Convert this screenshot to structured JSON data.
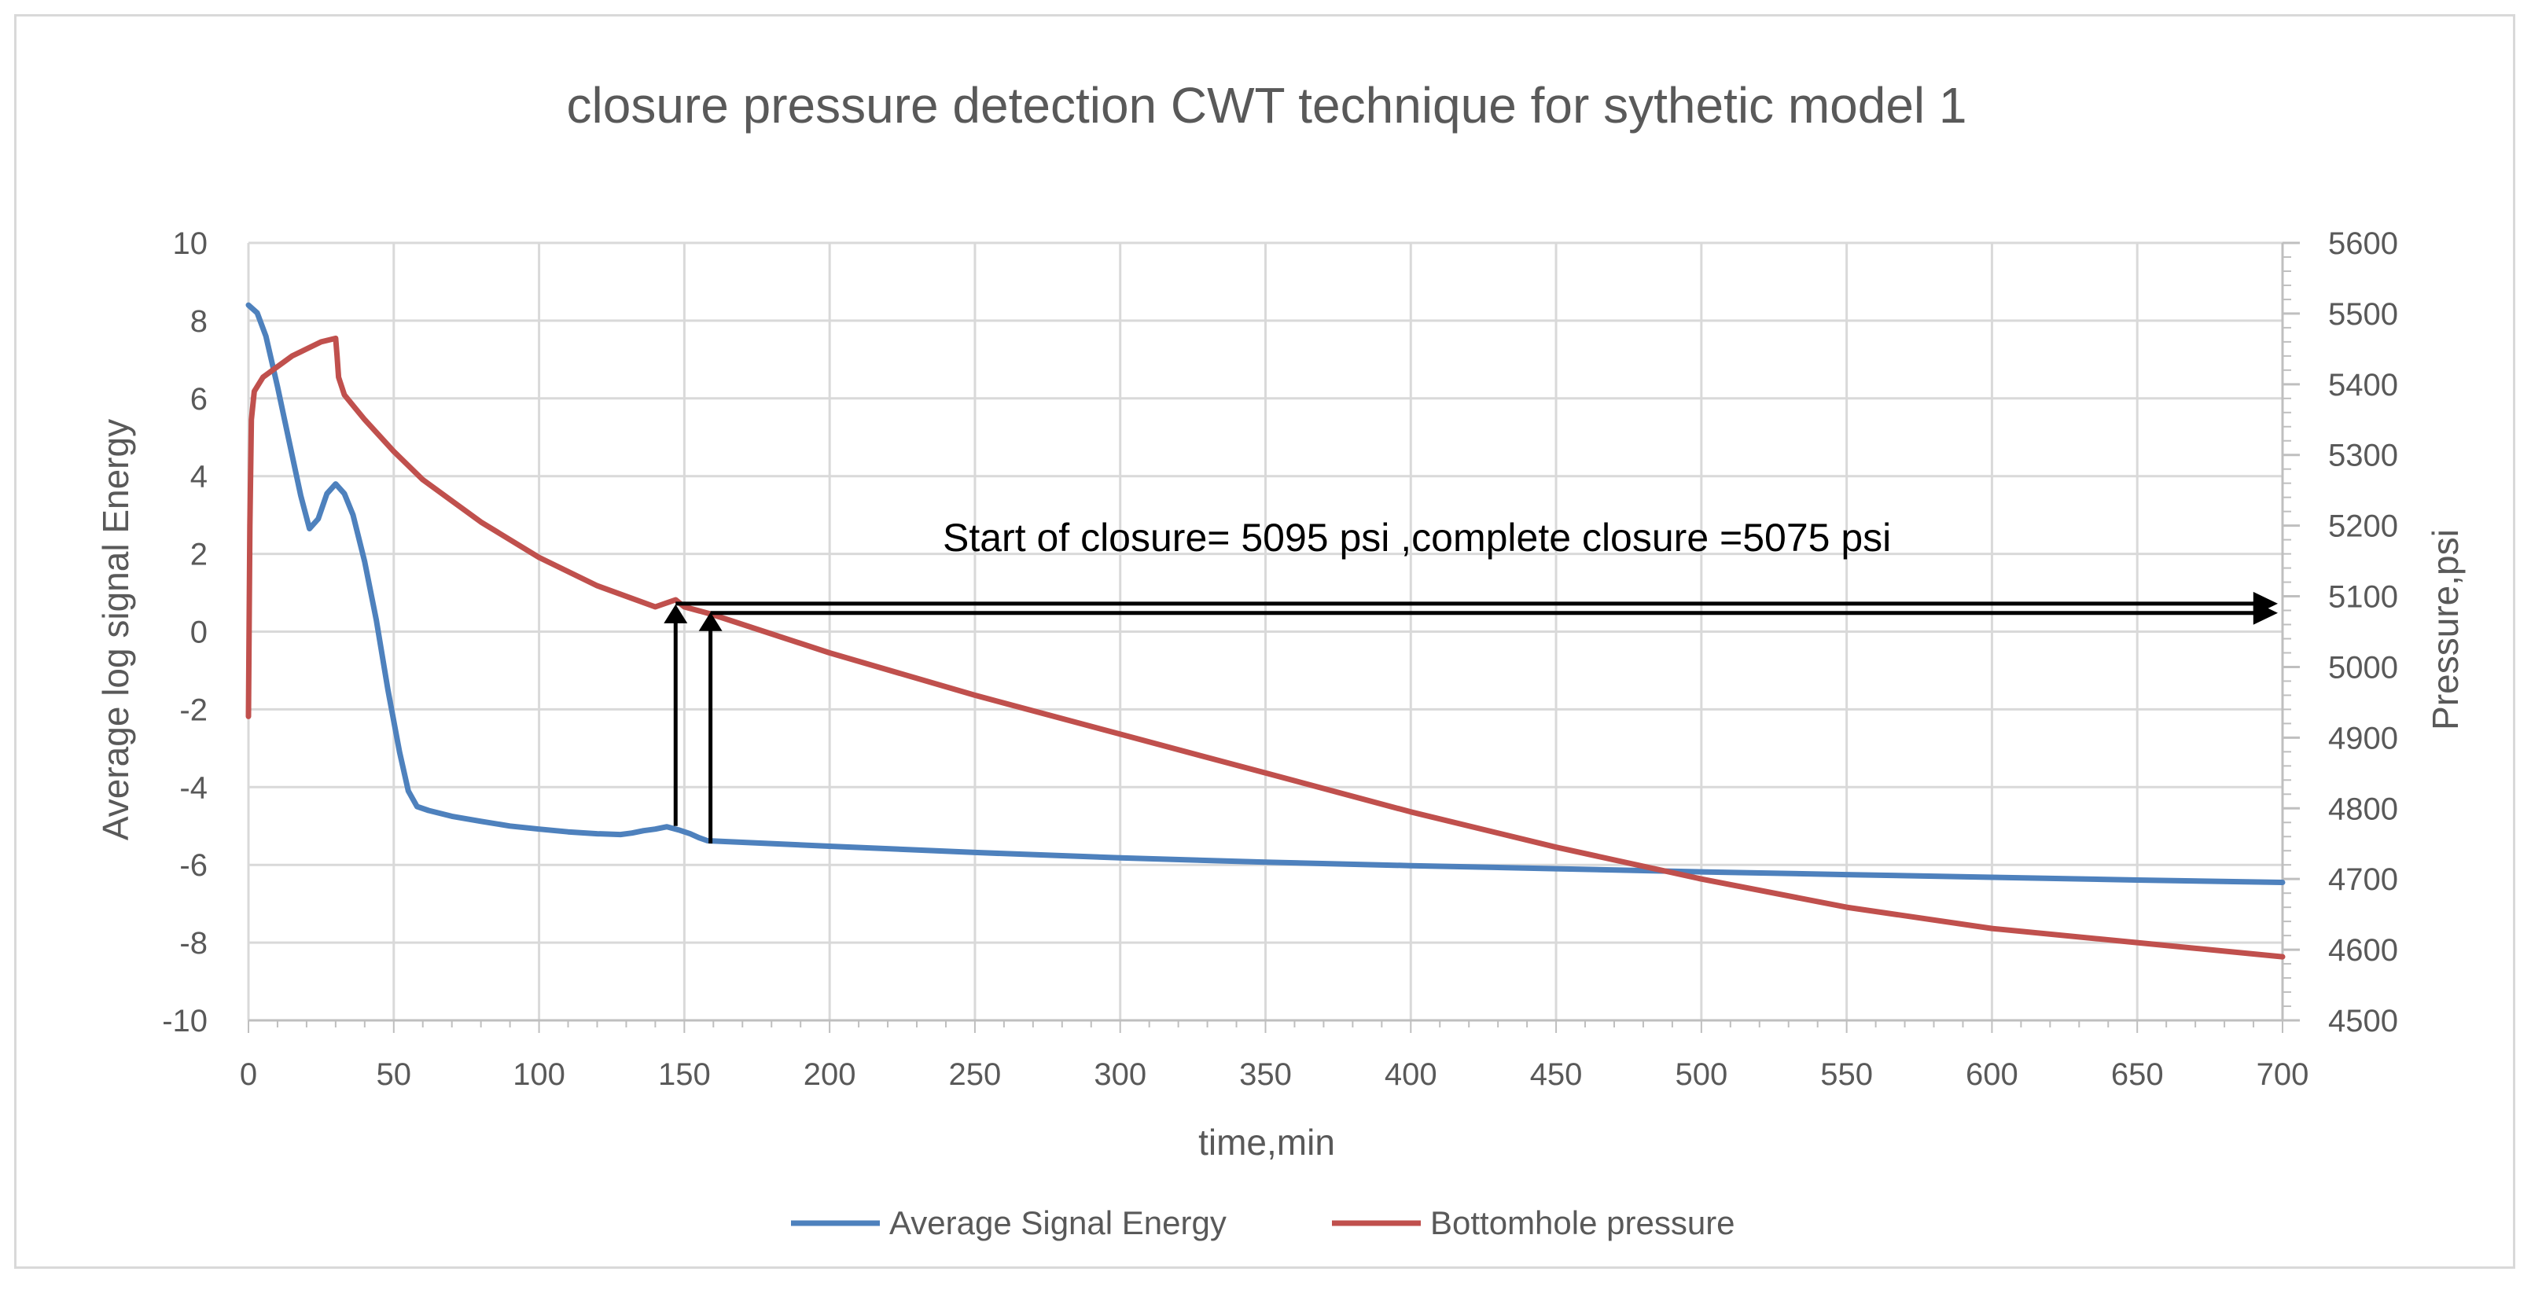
{
  "colors": {
    "series1": "#4e81bd",
    "series2": "#c0504d",
    "grid": "#d9d9d9",
    "text": "#595959",
    "arrow": "#000000"
  },
  "chart_data": {
    "type": "line",
    "title": "closure pressure detection CWT technique for sythetic model 1",
    "xlabel": "time,min",
    "ylabel": "Average log signal Energy",
    "y2label": "Pressure,psi",
    "xlim": [
      0,
      700
    ],
    "ylim": [
      -10,
      10
    ],
    "y2lim": [
      4500,
      5600
    ],
    "grid": true,
    "legend_position": "bottom",
    "x_ticks": [
      "0",
      "50",
      "100",
      "150",
      "200",
      "250",
      "300",
      "350",
      "400",
      "450",
      "500",
      "550",
      "600",
      "650",
      "700"
    ],
    "y_ticks": [
      "10",
      "8",
      "6",
      "4",
      "2",
      "0",
      "-2",
      "-4",
      "-6",
      "-8",
      "-10"
    ],
    "y2_ticks": [
      "5600",
      "5500",
      "5400",
      "5300",
      "5200",
      "5100",
      "5000",
      "4900",
      "4800",
      "4700",
      "4600",
      "4500"
    ],
    "series": [
      {
        "name": "Average Signal Energy",
        "axis": "left",
        "x": [
          0,
          3,
          6,
          10,
          14,
          18,
          21,
          24,
          27,
          30,
          33,
          36,
          40,
          44,
          48,
          52,
          55,
          58,
          62,
          70,
          80,
          90,
          100,
          110,
          120,
          128,
          132,
          136,
          140,
          144,
          148,
          152,
          155,
          158,
          170,
          200,
          250,
          300,
          350,
          400,
          450,
          500,
          550,
          600,
          650,
          700
        ],
        "values": [
          8.4,
          8.2,
          7.6,
          6.3,
          4.9,
          3.5,
          2.65,
          2.9,
          3.55,
          3.8,
          3.55,
          3.0,
          1.8,
          0.3,
          -1.5,
          -3.1,
          -4.1,
          -4.5,
          -4.6,
          -4.75,
          -4.88,
          -5.0,
          -5.08,
          -5.15,
          -5.2,
          -5.22,
          -5.18,
          -5.12,
          -5.08,
          -5.02,
          -5.1,
          -5.2,
          -5.3,
          -5.38,
          -5.42,
          -5.52,
          -5.68,
          -5.82,
          -5.93,
          -6.02,
          -6.1,
          -6.18,
          -6.25,
          -6.32,
          -6.39,
          -6.45
        ]
      },
      {
        "name": "Bottomhole pressure",
        "axis": "right",
        "x": [
          0,
          0.5,
          1,
          2,
          5,
          10,
          15,
          20,
          25,
          30,
          30.5,
          31,
          33,
          36,
          40,
          50,
          60,
          80,
          100,
          120,
          140,
          147,
          150,
          159,
          200,
          250,
          300,
          350,
          400,
          450,
          500,
          550,
          600,
          650,
          700
        ],
        "values": [
          4930,
          5200,
          5350,
          5390,
          5410,
          5425,
          5440,
          5450,
          5460,
          5465,
          5440,
          5410,
          5385,
          5370,
          5350,
          5305,
          5265,
          5205,
          5155,
          5115,
          5085,
          5095,
          5085,
          5075,
          5020,
          4960,
          4905,
          4850,
          4795,
          4745,
          4700,
          4660,
          4630,
          4610,
          4590
        ]
      }
    ],
    "annotations": [
      {
        "text": "Start of closure= 5095 psi ,complete closure =5075 psi"
      }
    ],
    "arrows": [
      {
        "type": "vertical",
        "x": 147,
        "from_y": -5.0,
        "to_y": 0.7
      },
      {
        "type": "vertical",
        "x": 159,
        "from_y": -5.45,
        "to_y": 0.5
      },
      {
        "type": "horizontal",
        "y": 0.72,
        "from_x": 147,
        "to_x": 700
      },
      {
        "type": "horizontal",
        "y": 0.48,
        "from_x": 159,
        "to_x": 700
      }
    ]
  }
}
